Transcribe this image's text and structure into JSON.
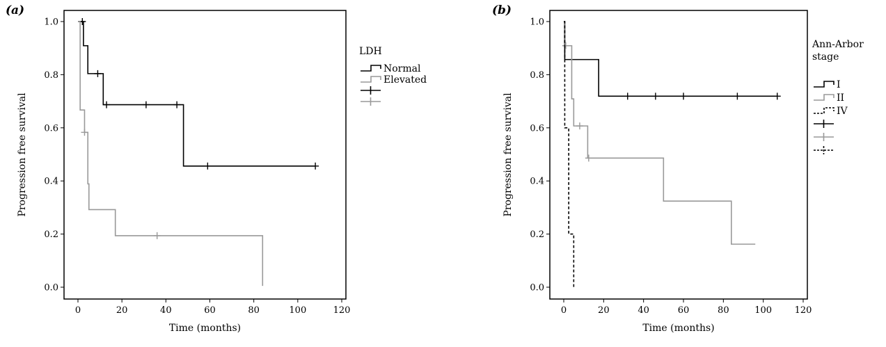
{
  "colors": {
    "black": "#000000",
    "gray": "#999999"
  },
  "chart_data": [
    {
      "type": "line",
      "subtype": "kaplan-meier",
      "panel_label": "(a)",
      "xlabel": "Time (months)",
      "ylabel": "Progression free survival",
      "xlim": [
        0,
        120
      ],
      "ylim": [
        0,
        1
      ],
      "xticks": [
        0,
        20,
        40,
        60,
        80,
        100,
        120
      ],
      "yticks": [
        0.0,
        0.2,
        0.4,
        0.6,
        0.8,
        1.0
      ],
      "grid": false,
      "legend": {
        "title": [
          "LDH"
        ],
        "placement": "right",
        "entries": [
          {
            "label": "Normal",
            "series": 0,
            "marker": "step"
          },
          {
            "label": "Elevated",
            "series": 1,
            "marker": "step"
          },
          {
            "label": "",
            "series": 0,
            "marker": "cross"
          },
          {
            "label": "",
            "series": 1,
            "marker": "cross"
          }
        ]
      },
      "series": [
        {
          "name": "Normal",
          "color": "#000000",
          "dash": false,
          "steps": [
            [
              0,
              1.0
            ],
            [
              2.5,
              0.909
            ],
            [
              4.5,
              0.804
            ],
            [
              11.5,
              0.687
            ],
            [
              48,
              0.456
            ],
            [
              108,
              0.456
            ]
          ],
          "censored": [
            [
              2,
              1.0
            ],
            [
              9,
              0.804
            ],
            [
              13,
              0.687
            ],
            [
              31,
              0.687
            ],
            [
              45,
              0.687
            ],
            [
              59,
              0.456
            ],
            [
              108,
              0.456
            ]
          ]
        },
        {
          "name": "Elevated",
          "color": "#999999",
          "dash": false,
          "steps": [
            [
              0,
              1.0
            ],
            [
              1,
              0.667
            ],
            [
              3,
              0.583
            ],
            [
              4.5,
              0.389
            ],
            [
              5,
              0.292
            ],
            [
              17,
              0.194
            ],
            [
              84,
              0.005
            ]
          ],
          "censored": [
            [
              3,
              0.583
            ],
            [
              36,
              0.194
            ]
          ]
        }
      ]
    },
    {
      "type": "line",
      "subtype": "kaplan-meier",
      "panel_label": "(b)",
      "xlabel": "Time (months)",
      "ylabel": "Progression free survival",
      "xlim": [
        0,
        120
      ],
      "ylim": [
        0,
        1
      ],
      "xticks": [
        0,
        20,
        40,
        60,
        80,
        100,
        120
      ],
      "yticks": [
        0.0,
        0.2,
        0.4,
        0.6,
        0.8,
        1.0
      ],
      "grid": false,
      "legend": {
        "title": [
          "Ann-Arbor",
          "stage"
        ],
        "placement": "right",
        "entries": [
          {
            "label": "I",
            "series": 0,
            "marker": "step"
          },
          {
            "label": "II",
            "series": 1,
            "marker": "step"
          },
          {
            "label": "IV",
            "series": 2,
            "marker": "step"
          },
          {
            "label": "",
            "series": 0,
            "marker": "cross"
          },
          {
            "label": "",
            "series": 1,
            "marker": "cross"
          },
          {
            "label": "",
            "series": 2,
            "marker": "cross"
          }
        ]
      },
      "series": [
        {
          "name": "I",
          "color": "#000000",
          "dash": false,
          "steps": [
            [
              0,
              1.0
            ],
            [
              0.5,
              0.857
            ],
            [
              17.5,
              0.719
            ],
            [
              107,
              0.719
            ]
          ],
          "censored": [
            [
              32,
              0.719
            ],
            [
              46,
              0.719
            ],
            [
              60,
              0.719
            ],
            [
              87,
              0.719
            ],
            [
              107,
              0.719
            ]
          ]
        },
        {
          "name": "II",
          "color": "#999999",
          "dash": false,
          "steps": [
            [
              0,
              1.0
            ],
            [
              0.3,
              0.909
            ],
            [
              4,
              0.709
            ],
            [
              5,
              0.607
            ],
            [
              12,
              0.486
            ],
            [
              50,
              0.324
            ],
            [
              84,
              0.162
            ],
            [
              96,
              0.162
            ]
          ],
          "censored": [
            [
              1,
              0.909
            ],
            [
              8,
              0.607
            ],
            [
              12.5,
              0.486
            ]
          ]
        },
        {
          "name": "IV",
          "color": "#000000",
          "dash": true,
          "steps": [
            [
              0,
              1.0
            ],
            [
              0.5,
              0.6
            ],
            [
              2.5,
              0.2
            ],
            [
              5,
              0.0
            ]
          ],
          "censored": []
        }
      ]
    }
  ]
}
